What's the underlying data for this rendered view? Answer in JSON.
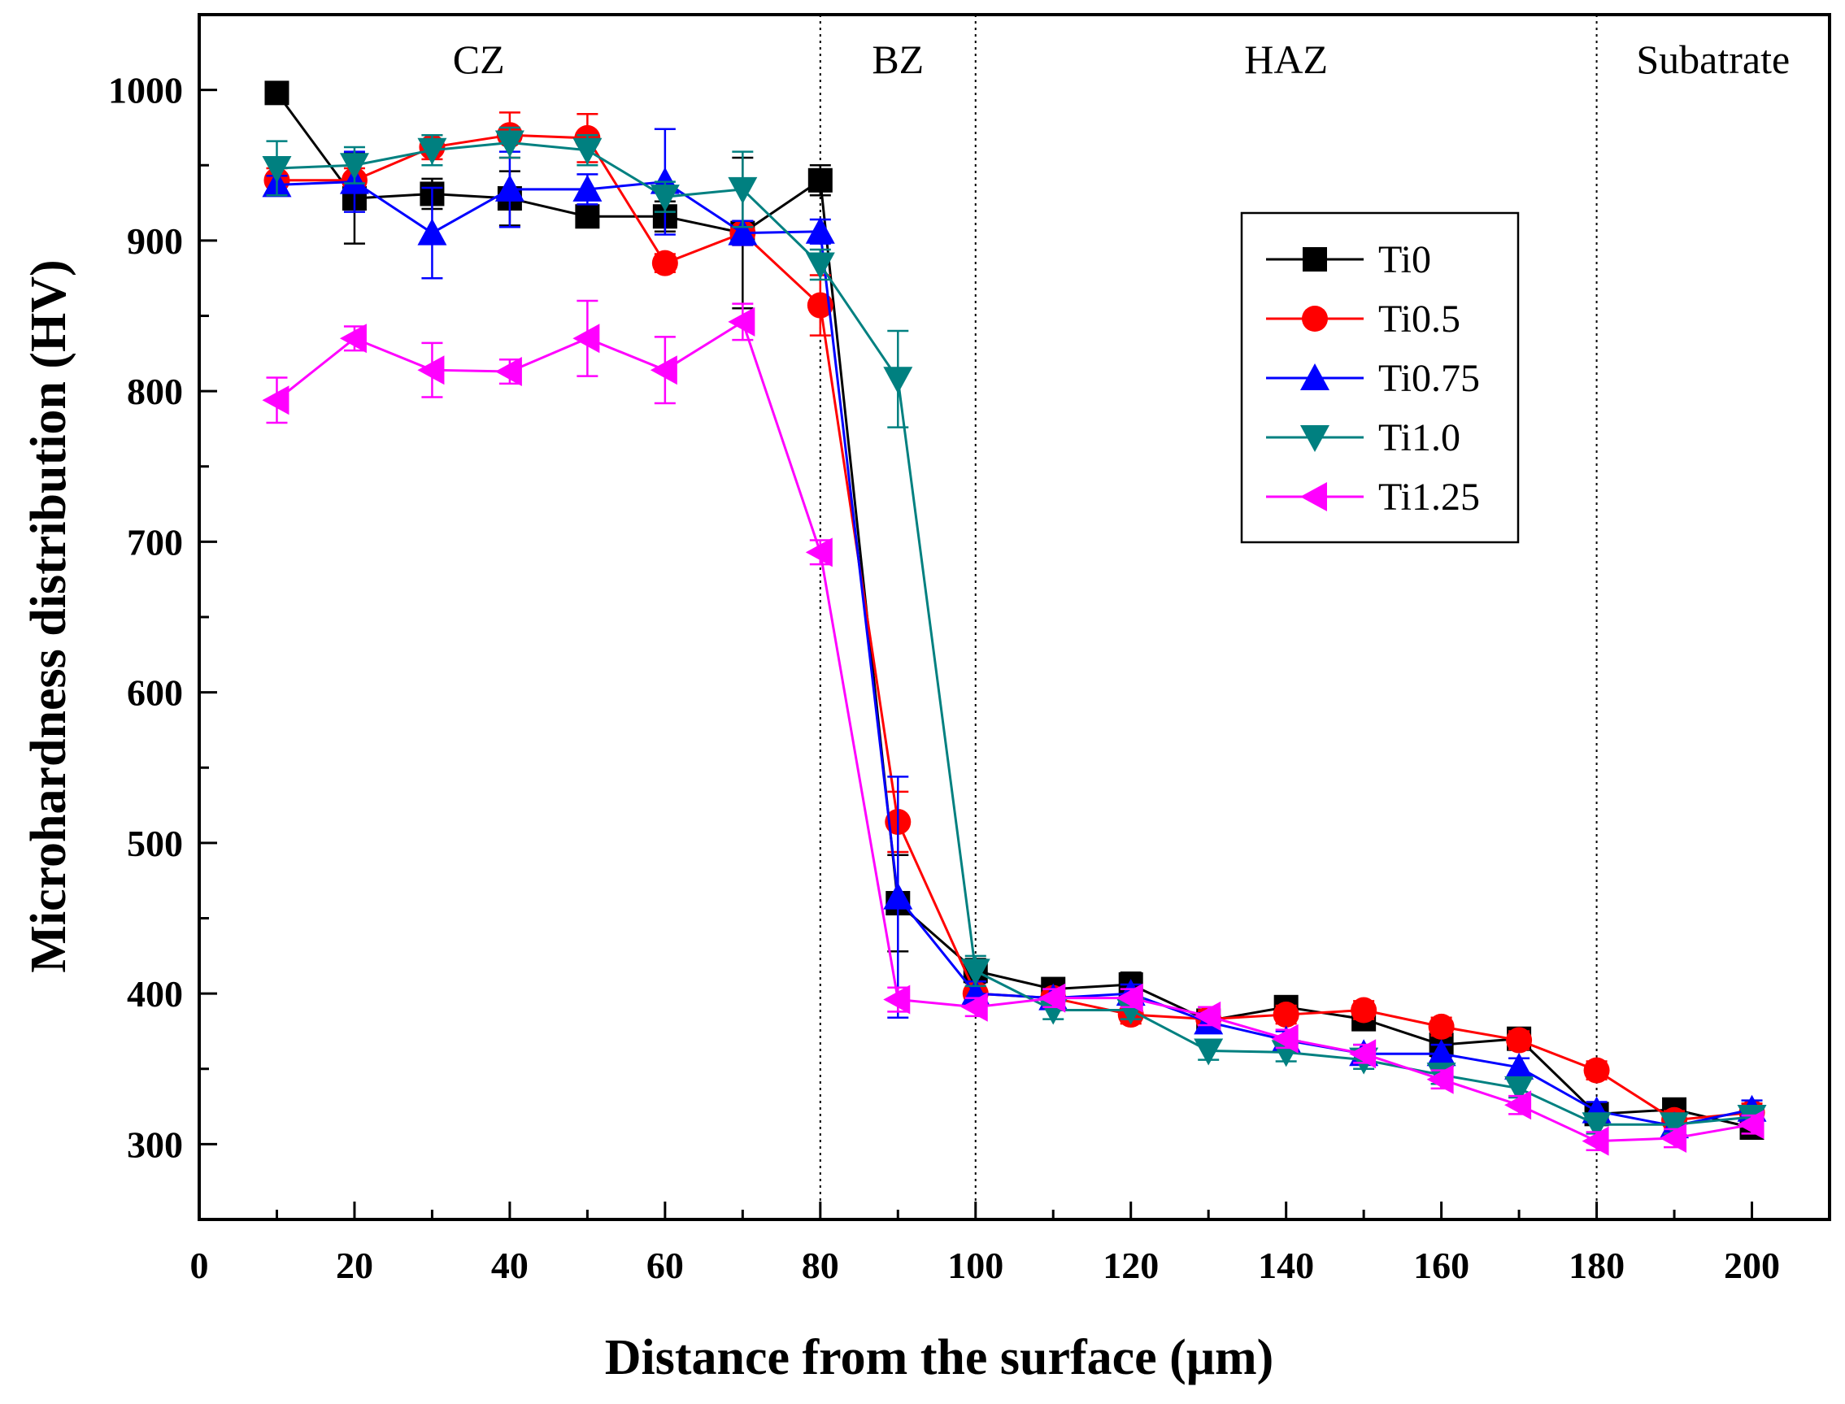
{
  "chart_data": {
    "type": "line",
    "title": "",
    "xlabel": "Distance from the surface (μm)",
    "ylabel": "Microhardness distribution (HV)",
    "xlim": [
      0,
      210
    ],
    "ylim": [
      250,
      1050
    ],
    "xticks": [
      0,
      20,
      40,
      60,
      80,
      100,
      120,
      140,
      160,
      180,
      200
    ],
    "yticks": [
      300,
      400,
      500,
      600,
      700,
      800,
      900,
      1000
    ],
    "grid": false,
    "legend_position": "upper-right",
    "zones": [
      {
        "label": "CZ",
        "x_center": 36
      },
      {
        "label": "BZ",
        "x_center": 90
      },
      {
        "label": "HAZ",
        "x_center": 140
      },
      {
        "label": "Subatrate",
        "x_center": 195
      }
    ],
    "zone_boundaries": [
      80,
      100,
      180
    ],
    "x": [
      10,
      20,
      30,
      40,
      50,
      60,
      70,
      80,
      90,
      100,
      110,
      120,
      130,
      140,
      150,
      160,
      170,
      180,
      190,
      200
    ],
    "series": [
      {
        "name": "Ti0",
        "color": "#000000",
        "marker": "square",
        "values": [
          998,
          928,
          931,
          928,
          916,
          916,
          905,
          940,
          460,
          415,
          403,
          406,
          382,
          391,
          383,
          366,
          370,
          320,
          323,
          311
        ],
        "errors": [
          5,
          30,
          10,
          18,
          6,
          10,
          50,
          10,
          32,
          8,
          6,
          8,
          6,
          6,
          6,
          8,
          6,
          6,
          6,
          6
        ]
      },
      {
        "name": "Ti0.5",
        "color": "#ff0000",
        "marker": "circle",
        "values": [
          940,
          940,
          962,
          970,
          968,
          885,
          905,
          857,
          514,
          400,
          397,
          386,
          383,
          386,
          389,
          378,
          369,
          349,
          316,
          321
        ],
        "errors": [
          8,
          8,
          8,
          15,
          16,
          6,
          8,
          20,
          20,
          8,
          6,
          6,
          6,
          6,
          6,
          6,
          6,
          6,
          6,
          6
        ]
      },
      {
        "name": "Ti0.75",
        "color": "#0000ff",
        "marker": "triangle-up",
        "values": [
          937,
          939,
          905,
          934,
          934,
          939,
          905,
          906,
          464,
          400,
          397,
          400,
          381,
          369,
          360,
          360,
          351,
          322,
          312,
          323
        ],
        "errors": [
          6,
          20,
          30,
          25,
          10,
          35,
          8,
          8,
          80,
          8,
          6,
          6,
          6,
          6,
          6,
          6,
          6,
          6,
          6,
          6
        ]
      },
      {
        "name": "Ti1.0",
        "color": "#008080",
        "marker": "triangle-down",
        "values": [
          948,
          950,
          960,
          965,
          960,
          929,
          934,
          884,
          808,
          415,
          389,
          389,
          362,
          361,
          356,
          346,
          337,
          313,
          313,
          318
        ],
        "errors": [
          18,
          12,
          10,
          10,
          10,
          10,
          25,
          10,
          32,
          10,
          6,
          6,
          6,
          6,
          6,
          6,
          6,
          6,
          6,
          6
        ]
      },
      {
        "name": "Ti1.25",
        "color": "#ff00ff",
        "marker": "triangle-left",
        "values": [
          794,
          835,
          814,
          813,
          835,
          814,
          846,
          693,
          396,
          391,
          397,
          397,
          385,
          370,
          360,
          343,
          326,
          302,
          304,
          313
        ],
        "errors": [
          15,
          8,
          18,
          8,
          25,
          22,
          12,
          8,
          8,
          6,
          6,
          6,
          6,
          6,
          6,
          6,
          6,
          6,
          6,
          6
        ]
      }
    ]
  }
}
